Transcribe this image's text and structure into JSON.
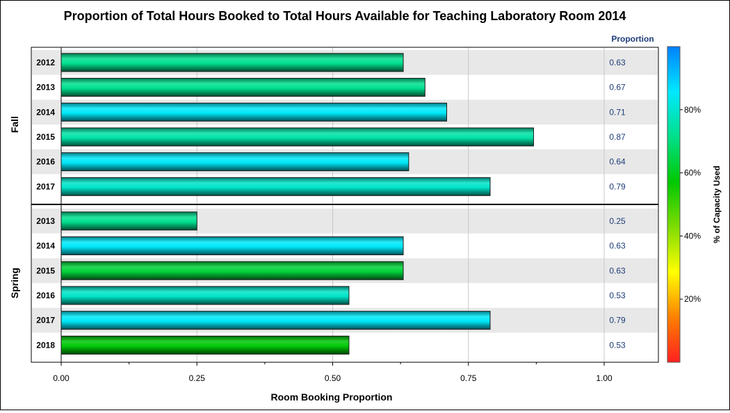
{
  "chart_data": {
    "type": "bar",
    "orientation": "horizontal",
    "title": "Proportion of Total Hours Booked to Total Hours Available for Teaching Laboratory Room 2014",
    "xlabel": "Room Booking Proportion",
    "value_column_label": "Proportion",
    "xlim": [
      0,
      1.1
    ],
    "xticks": [
      0,
      0.25,
      0.5,
      0.75,
      1.0
    ],
    "xtick_labels": [
      "0.00",
      "0.25",
      "0.50",
      "0.75",
      "1.00"
    ],
    "grid": true,
    "groups": [
      {
        "name": "Fall",
        "rows": [
          {
            "label": "2012",
            "value": 0.63,
            "value_label": "0.63",
            "capacity_pct": 72
          },
          {
            "label": "2013",
            "value": 0.67,
            "value_label": "0.67",
            "capacity_pct": 72
          },
          {
            "label": "2014",
            "value": 0.71,
            "value_label": "0.71",
            "capacity_pct": 85
          },
          {
            "label": "2015",
            "value": 0.87,
            "value_label": "0.87",
            "capacity_pct": 75
          },
          {
            "label": "2016",
            "value": 0.64,
            "value_label": "0.64",
            "capacity_pct": 85
          },
          {
            "label": "2017",
            "value": 0.79,
            "value_label": "0.79",
            "capacity_pct": 79
          }
        ]
      },
      {
        "name": "Spring",
        "rows": [
          {
            "label": "2013",
            "value": 0.25,
            "value_label": "0.25",
            "capacity_pct": 72
          },
          {
            "label": "2014",
            "value": 0.63,
            "value_label": "0.63",
            "capacity_pct": 85
          },
          {
            "label": "2015",
            "value": 0.63,
            "value_label": "0.63",
            "capacity_pct": 63
          },
          {
            "label": "2016",
            "value": 0.53,
            "value_label": "0.53",
            "capacity_pct": 79
          },
          {
            "label": "2017",
            "value": 0.79,
            "value_label": "0.79",
            "capacity_pct": 85
          },
          {
            "label": "2018",
            "value": 0.53,
            "value_label": "0.53",
            "capacity_pct": 58
          }
        ]
      }
    ],
    "color_legend": {
      "title": "% of Capacity Used",
      "ticks": [
        {
          "value": 20,
          "label": "20%"
        },
        {
          "value": 40,
          "label": "40%"
        },
        {
          "value": 60,
          "label": "60%"
        },
        {
          "value": 80,
          "label": "80%"
        }
      ],
      "range": [
        0,
        100
      ],
      "colors": [
        "#ff2020",
        "#ff8000",
        "#ffff00",
        "#7fdc00",
        "#00c800",
        "#00e08a",
        "#00e8ff",
        "#0080ff"
      ]
    }
  }
}
